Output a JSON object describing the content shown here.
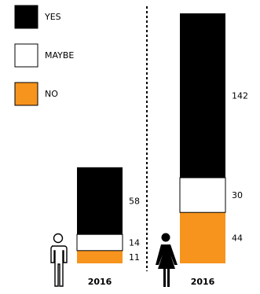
{
  "chart_data": {
    "type": "bar",
    "stacked": true,
    "title": "",
    "xlabel": "",
    "ylabel": "",
    "categories": [
      "2016",
      "2016"
    ],
    "category_icons": [
      "man-icon",
      "woman-icon"
    ],
    "series": [
      {
        "name": "NO",
        "color": "#F7941D",
        "values": [
          11,
          44
        ]
      },
      {
        "name": "MAYBE",
        "color": "#FFFFFF",
        "values": [
          14,
          30
        ]
      },
      {
        "name": "YES",
        "color": "#000000",
        "values": [
          58,
          142
        ]
      }
    ],
    "ylim": [
      0,
      216
    ],
    "legend": "top-left",
    "divider": "dashed vertical line between groups",
    "grid": false
  }
}
